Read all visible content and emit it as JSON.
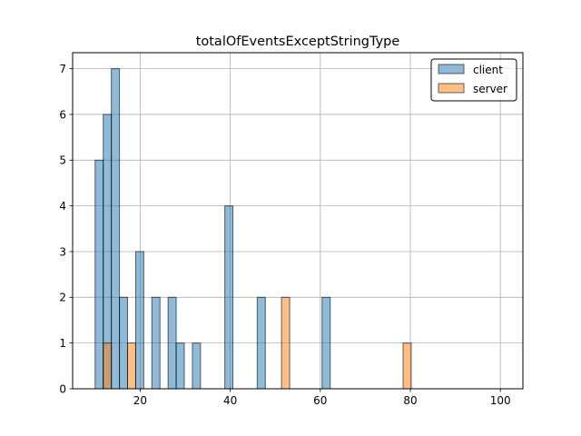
{
  "chart_data": {
    "type": "bar",
    "title": "totalOfEventsExceptStringType",
    "xlabel": "",
    "ylabel": "",
    "xlim": [
      5,
      105
    ],
    "ylim": [
      0,
      7.35
    ],
    "xticks": [
      20,
      40,
      60,
      80,
      100
    ],
    "yticks": [
      0,
      1,
      2,
      3,
      4,
      5,
      6,
      7
    ],
    "grid": true,
    "legend_position": "top-right",
    "bin_width": 1.8,
    "series": [
      {
        "name": "client",
        "color": "#1f77b4",
        "bins": [
          {
            "x": 10.0,
            "count": 5
          },
          {
            "x": 11.8,
            "count": 6
          },
          {
            "x": 13.6,
            "count": 7
          },
          {
            "x": 15.4,
            "count": 2
          },
          {
            "x": 19.0,
            "count": 3
          },
          {
            "x": 22.6,
            "count": 2
          },
          {
            "x": 26.2,
            "count": 2
          },
          {
            "x": 28.0,
            "count": 1
          },
          {
            "x": 31.6,
            "count": 1
          },
          {
            "x": 38.8,
            "count": 4
          },
          {
            "x": 46.0,
            "count": 2
          },
          {
            "x": 60.4,
            "count": 2
          }
        ]
      },
      {
        "name": "server",
        "color": "#ff7f0e",
        "bins": [
          {
            "x": 11.8,
            "count": 1
          },
          {
            "x": 17.2,
            "count": 1
          },
          {
            "x": 51.4,
            "count": 2
          },
          {
            "x": 78.4,
            "count": 1
          }
        ]
      }
    ]
  }
}
